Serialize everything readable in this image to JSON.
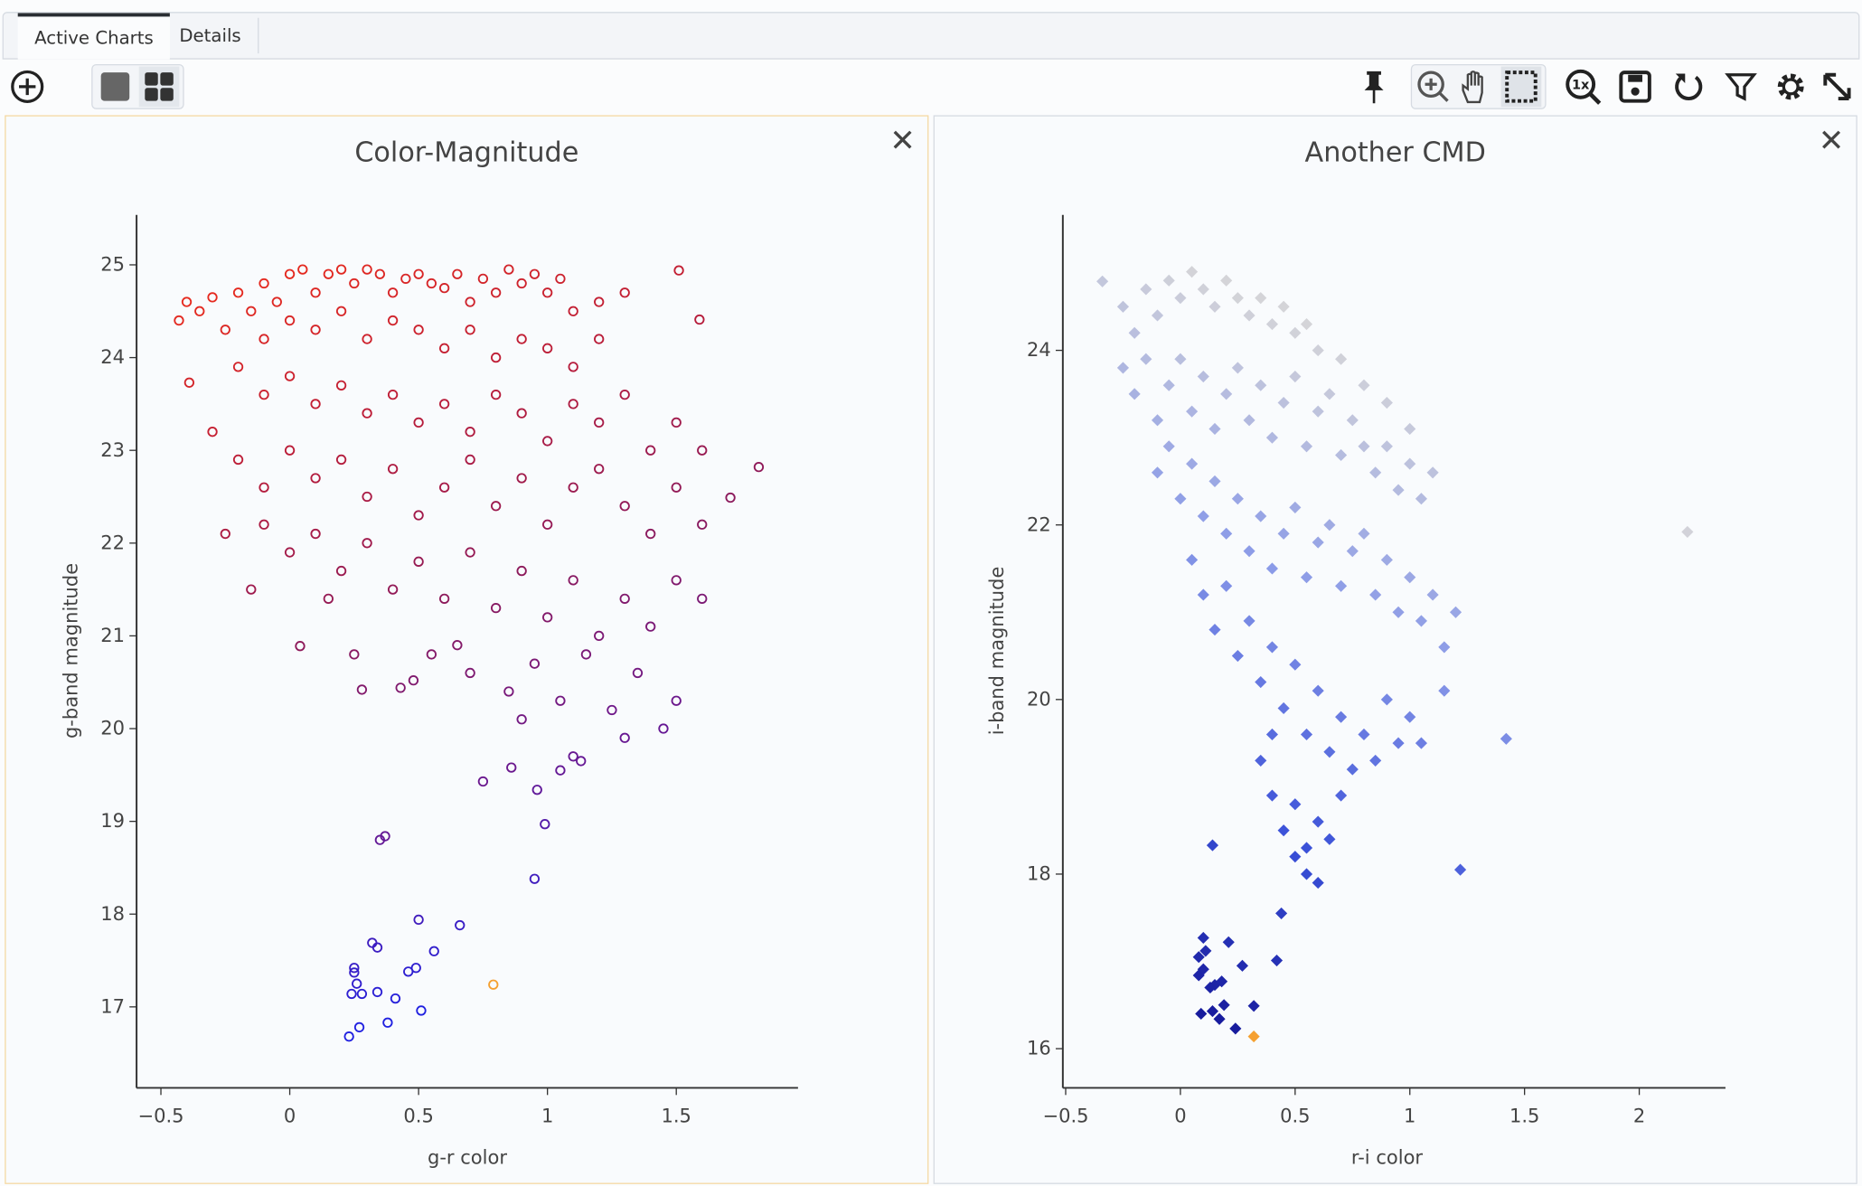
{
  "tabs": [
    {
      "label": "Active Charts",
      "active": true
    },
    {
      "label": "Details",
      "active": false
    }
  ],
  "toolbar": {
    "icons": [
      "add-chart-icon",
      "single-view-icon",
      "grid-view-icon",
      "pin-icon",
      "zoom-icon",
      "pan-icon",
      "select-icon",
      "reset-zoom-icon",
      "save-icon",
      "restore-icon",
      "filter-icon",
      "settings-icon",
      "expand-icon"
    ],
    "reset_zoom_label": "1x"
  },
  "close_glyph": "✕",
  "chart_data": [
    {
      "type": "scatter",
      "title": "Color-Magnitude",
      "xlabel": "g-r color",
      "ylabel": "g-band magnitude",
      "marker": "open-circle",
      "xlim": [
        -0.6,
        1.97
      ],
      "ylim": [
        16.1,
        25.5
      ],
      "xticks": [
        "−0.5",
        "0",
        "0.5",
        "1",
        "1.5"
      ],
      "xtick_values": [
        -0.5,
        0,
        0.5,
        1,
        1.5
      ],
      "yticks": [
        "17",
        "18",
        "19",
        "20",
        "21",
        "22",
        "23",
        "24",
        "25"
      ],
      "ytick_values": [
        17,
        18,
        19,
        20,
        21,
        22,
        23,
        24,
        25
      ],
      "colorscale": [
        "#2020e0",
        "#6a1890",
        "#8c1a5c",
        "#b81c3a",
        "#e62a1e"
      ],
      "highlight": {
        "x": 0.79,
        "y": 17.24,
        "color": "#f5a030"
      },
      "points": [
        [
          1.51,
          24.94
        ],
        [
          1.59,
          24.41
        ],
        [
          -0.39,
          23.73
        ],
        [
          1.82,
          22.82
        ],
        [
          1.71,
          22.49
        ],
        [
          0.04,
          20.89
        ],
        [
          0.25,
          20.8
        ],
        [
          0.28,
          20.42
        ],
        [
          0.43,
          20.44
        ],
        [
          0.48,
          20.52
        ],
        [
          0.75,
          19.43
        ],
        [
          0.86,
          19.58
        ],
        [
          0.96,
          19.34
        ],
        [
          0.99,
          18.97
        ],
        [
          1.05,
          19.55
        ],
        [
          1.13,
          19.65
        ],
        [
          0.95,
          18.38
        ],
        [
          0.35,
          18.8
        ],
        [
          0.37,
          18.84
        ],
        [
          0.5,
          17.94
        ],
        [
          0.66,
          17.88
        ],
        [
          0.32,
          17.69
        ],
        [
          0.34,
          17.64
        ],
        [
          0.56,
          17.6
        ],
        [
          0.25,
          17.42
        ],
        [
          0.25,
          17.37
        ],
        [
          0.46,
          17.38
        ],
        [
          0.49,
          17.42
        ],
        [
          0.26,
          17.25
        ],
        [
          0.24,
          17.14
        ],
        [
          0.28,
          17.14
        ],
        [
          0.34,
          17.16
        ],
        [
          0.41,
          17.09
        ],
        [
          0.51,
          16.96
        ],
        [
          0.38,
          16.83
        ],
        [
          0.27,
          16.78
        ],
        [
          0.23,
          16.68
        ],
        [
          -0.43,
          24.4
        ],
        [
          -0.4,
          24.6
        ],
        [
          -0.35,
          24.5
        ],
        [
          -0.3,
          24.65
        ],
        [
          -0.25,
          24.3
        ],
        [
          -0.2,
          24.7
        ],
        [
          -0.15,
          24.5
        ],
        [
          -0.1,
          24.8
        ],
        [
          -0.05,
          24.6
        ],
        [
          0,
          24.9
        ],
        [
          0.05,
          24.95
        ],
        [
          0.1,
          24.7
        ],
        [
          0.15,
          24.9
        ],
        [
          0.2,
          24.95
        ],
        [
          0.25,
          24.8
        ],
        [
          0.3,
          24.95
        ],
        [
          0.35,
          24.9
        ],
        [
          0.4,
          24.7
        ],
        [
          0.45,
          24.85
        ],
        [
          0.5,
          24.9
        ],
        [
          0.55,
          24.8
        ],
        [
          0.6,
          24.75
        ],
        [
          0.65,
          24.9
        ],
        [
          0.7,
          24.6
        ],
        [
          0.75,
          24.85
        ],
        [
          0.8,
          24.7
        ],
        [
          0.85,
          24.95
        ],
        [
          0.9,
          24.8
        ],
        [
          0.95,
          24.9
        ],
        [
          1.0,
          24.7
        ],
        [
          1.05,
          24.85
        ],
        [
          1.1,
          24.5
        ],
        [
          1.2,
          24.6
        ],
        [
          1.3,
          24.7
        ],
        [
          -0.1,
          24.2
        ],
        [
          0,
          24.4
        ],
        [
          0.1,
          24.3
        ],
        [
          0.2,
          24.5
        ],
        [
          0.3,
          24.2
        ],
        [
          0.4,
          24.4
        ],
        [
          0.5,
          24.3
        ],
        [
          0.6,
          24.1
        ],
        [
          0.7,
          24.3
        ],
        [
          0.8,
          24.0
        ],
        [
          0.9,
          24.2
        ],
        [
          1.0,
          24.1
        ],
        [
          1.1,
          23.9
        ],
        [
          1.2,
          24.2
        ],
        [
          -0.2,
          23.9
        ],
        [
          -0.1,
          23.6
        ],
        [
          0,
          23.8
        ],
        [
          0.1,
          23.5
        ],
        [
          0.2,
          23.7
        ],
        [
          0.3,
          23.4
        ],
        [
          0.4,
          23.6
        ],
        [
          0.5,
          23.3
        ],
        [
          0.6,
          23.5
        ],
        [
          0.7,
          23.2
        ],
        [
          0.8,
          23.6
        ],
        [
          0.9,
          23.4
        ],
        [
          1.0,
          23.1
        ],
        [
          1.1,
          23.5
        ],
        [
          1.2,
          23.3
        ],
        [
          1.3,
          23.6
        ],
        [
          1.4,
          23.0
        ],
        [
          1.5,
          23.3
        ],
        [
          1.6,
          23.0
        ],
        [
          -0.3,
          23.2
        ],
        [
          -0.2,
          22.9
        ],
        [
          -0.1,
          22.6
        ],
        [
          0,
          23.0
        ],
        [
          0.1,
          22.7
        ],
        [
          0.2,
          22.9
        ],
        [
          0.3,
          22.5
        ],
        [
          0.4,
          22.8
        ],
        [
          0.5,
          22.3
        ],
        [
          0.6,
          22.6
        ],
        [
          0.7,
          22.9
        ],
        [
          0.8,
          22.4
        ],
        [
          0.9,
          22.7
        ],
        [
          1.0,
          22.2
        ],
        [
          1.1,
          22.6
        ],
        [
          1.2,
          22.8
        ],
        [
          1.3,
          22.4
        ],
        [
          1.4,
          22.1
        ],
        [
          1.5,
          22.6
        ],
        [
          1.6,
          22.2
        ],
        [
          -0.25,
          22.1
        ],
        [
          -0.1,
          22.2
        ],
        [
          0,
          21.9
        ],
        [
          0.1,
          22.1
        ],
        [
          0.2,
          21.7
        ],
        [
          0.3,
          22.0
        ],
        [
          0.4,
          21.5
        ],
        [
          0.5,
          21.8
        ],
        [
          0.6,
          21.4
        ],
        [
          0.7,
          21.9
        ],
        [
          0.8,
          21.3
        ],
        [
          0.9,
          21.7
        ],
        [
          1.0,
          21.2
        ],
        [
          1.1,
          21.6
        ],
        [
          1.2,
          21.0
        ],
        [
          1.3,
          21.4
        ],
        [
          1.4,
          21.1
        ],
        [
          1.5,
          21.6
        ],
        [
          1.6,
          21.4
        ],
        [
          -0.15,
          21.5
        ],
        [
          0.15,
          21.4
        ],
        [
          0.55,
          20.8
        ],
        [
          0.7,
          20.6
        ],
        [
          0.85,
          20.4
        ],
        [
          0.95,
          20.7
        ],
        [
          1.05,
          20.3
        ],
        [
          1.15,
          20.8
        ],
        [
          1.25,
          20.2
        ],
        [
          1.35,
          20.6
        ],
        [
          1.45,
          20.0
        ],
        [
          1.5,
          20.3
        ],
        [
          0.9,
          20.1
        ],
        [
          1.1,
          19.7
        ],
        [
          0.65,
          20.9
        ],
        [
          1.3,
          19.9
        ]
      ]
    },
    {
      "type": "scatter",
      "title": "Another CMD",
      "xlabel": "r-i color",
      "ylabel": "i-band magnitude",
      "marker": "diamond",
      "xlim": [
        -0.52,
        2.37
      ],
      "ylim": [
        15.6,
        25.6
      ],
      "xticks": [
        "−0.5",
        "0",
        "0.5",
        "1",
        "1.5",
        "2"
      ],
      "xtick_values": [
        -0.5,
        0,
        0.5,
        1,
        1.5,
        2
      ],
      "yticks": [
        "16",
        "18",
        "20",
        "22",
        "24"
      ],
      "ytick_values": [
        16,
        18,
        20,
        22,
        24
      ],
      "colorscale": [
        "#101090",
        "#3a50d8",
        "#8a9ae8",
        "#d4d4d8"
      ],
      "highlight": {
        "x": 0.32,
        "y": 16.14,
        "color": "#f5a030"
      },
      "points": [
        [
          -0.34,
          24.79
        ],
        [
          2.21,
          21.92
        ],
        [
          1.42,
          19.55
        ],
        [
          1.22,
          18.05
        ],
        [
          0.14,
          18.33
        ],
        [
          0.44,
          17.55
        ],
        [
          0.42,
          17.01
        ],
        [
          0.1,
          17.27
        ],
        [
          0.11,
          17.12
        ],
        [
          0.08,
          17.05
        ],
        [
          0.1,
          16.91
        ],
        [
          0.08,
          16.84
        ],
        [
          0.15,
          16.73
        ],
        [
          0.18,
          16.77
        ],
        [
          0.13,
          16.7
        ],
        [
          0.21,
          17.22
        ],
        [
          0.27,
          16.95
        ],
        [
          0.09,
          16.4
        ],
        [
          0.14,
          16.43
        ],
        [
          0.17,
          16.34
        ],
        [
          0.24,
          16.23
        ],
        [
          0.19,
          16.5
        ],
        [
          0.32,
          16.49
        ],
        [
          -0.25,
          24.5
        ],
        [
          -0.2,
          24.2
        ],
        [
          -0.15,
          24.7
        ],
        [
          -0.1,
          24.4
        ],
        [
          -0.05,
          24.8
        ],
        [
          0,
          24.6
        ],
        [
          0.05,
          24.9
        ],
        [
          0.1,
          24.7
        ],
        [
          0.15,
          24.5
        ],
        [
          0.2,
          24.8
        ],
        [
          0.25,
          24.6
        ],
        [
          0.3,
          24.4
        ],
        [
          0.35,
          24.6
        ],
        [
          0.4,
          24.3
        ],
        [
          0.45,
          24.5
        ],
        [
          0.5,
          24.2
        ],
        [
          0.55,
          24.3
        ],
        [
          0.6,
          24.0
        ],
        [
          0.7,
          23.9
        ],
        [
          0.8,
          23.6
        ],
        [
          0.9,
          23.4
        ],
        [
          1.0,
          23.1
        ],
        [
          -0.25,
          23.8
        ],
        [
          -0.2,
          23.5
        ],
        [
          -0.15,
          23.9
        ],
        [
          -0.1,
          23.2
        ],
        [
          -0.05,
          23.6
        ],
        [
          0,
          23.9
        ],
        [
          0.05,
          23.3
        ],
        [
          0.1,
          23.7
        ],
        [
          0.15,
          23.1
        ],
        [
          0.2,
          23.5
        ],
        [
          0.25,
          23.8
        ],
        [
          0.3,
          23.2
        ],
        [
          0.35,
          23.6
        ],
        [
          0.4,
          23.0
        ],
        [
          0.45,
          23.4
        ],
        [
          0.5,
          23.7
        ],
        [
          0.55,
          22.9
        ],
        [
          0.6,
          23.3
        ],
        [
          0.65,
          23.5
        ],
        [
          0.7,
          22.8
        ],
        [
          0.75,
          23.2
        ],
        [
          0.8,
          22.9
        ],
        [
          0.85,
          22.6
        ],
        [
          0.9,
          22.9
        ],
        [
          0.95,
          22.4
        ],
        [
          1.0,
          22.7
        ],
        [
          1.05,
          22.3
        ],
        [
          1.1,
          22.6
        ],
        [
          -0.1,
          22.6
        ],
        [
          -0.05,
          22.9
        ],
        [
          0,
          22.3
        ],
        [
          0.05,
          22.7
        ],
        [
          0.1,
          22.1
        ],
        [
          0.15,
          22.5
        ],
        [
          0.2,
          21.9
        ],
        [
          0.25,
          22.3
        ],
        [
          0.3,
          21.7
        ],
        [
          0.35,
          22.1
        ],
        [
          0.4,
          21.5
        ],
        [
          0.45,
          21.9
        ],
        [
          0.5,
          22.2
        ],
        [
          0.55,
          21.4
        ],
        [
          0.6,
          21.8
        ],
        [
          0.65,
          22.0
        ],
        [
          0.7,
          21.3
        ],
        [
          0.75,
          21.7
        ],
        [
          0.8,
          21.9
        ],
        [
          0.85,
          21.2
        ],
        [
          0.9,
          21.6
        ],
        [
          0.95,
          21.0
        ],
        [
          1.0,
          21.4
        ],
        [
          1.05,
          20.9
        ],
        [
          1.1,
          21.2
        ],
        [
          1.15,
          20.6
        ],
        [
          1.2,
          21.0
        ],
        [
          1.15,
          20.1
        ],
        [
          0.05,
          21.6
        ],
        [
          0.1,
          21.2
        ],
        [
          0.15,
          20.8
        ],
        [
          0.2,
          21.3
        ],
        [
          0.25,
          20.5
        ],
        [
          0.3,
          20.9
        ],
        [
          0.35,
          20.2
        ],
        [
          0.4,
          20.6
        ],
        [
          0.45,
          19.9
        ],
        [
          0.5,
          20.4
        ],
        [
          0.55,
          19.6
        ],
        [
          0.6,
          20.1
        ],
        [
          0.65,
          19.4
        ],
        [
          0.7,
          19.8
        ],
        [
          0.75,
          19.2
        ],
        [
          0.8,
          19.6
        ],
        [
          0.9,
          20.0
        ],
        [
          0.95,
          19.5
        ],
        [
          1.0,
          19.8
        ],
        [
          0.35,
          19.3
        ],
        [
          0.4,
          18.9
        ],
        [
          0.45,
          18.5
        ],
        [
          0.5,
          18.8
        ],
        [
          0.55,
          18.3
        ],
        [
          0.6,
          18.6
        ],
        [
          0.55,
          18.0
        ],
        [
          0.6,
          17.9
        ],
        [
          0.5,
          18.2
        ],
        [
          0.65,
          18.4
        ],
        [
          0.4,
          19.6
        ],
        [
          0.7,
          18.9
        ],
        [
          0.85,
          19.3
        ],
        [
          1.05,
          19.5
        ]
      ]
    }
  ]
}
